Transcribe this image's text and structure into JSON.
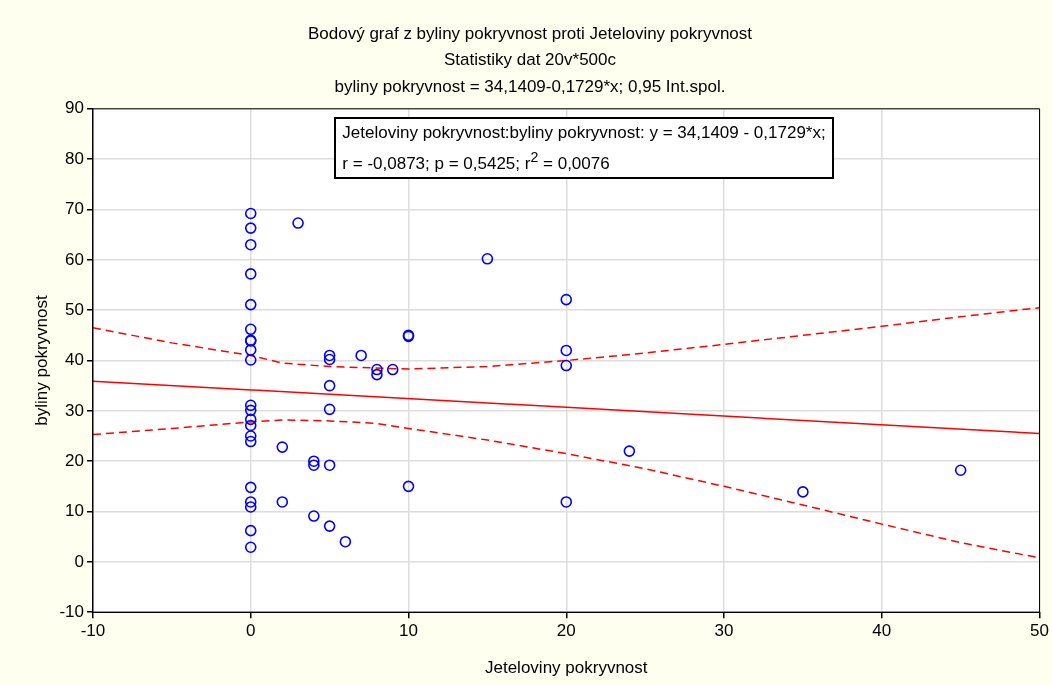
{
  "chart_data": {
    "type": "scatter",
    "title": "Bodový graf z byliny pokryvnost proti Jeteloviny pokryvnost",
    "subtitle": "Statistiky dat 20v*500c",
    "xlabel": "Jeteloviny pokryvnost",
    "ylabel": "byliny pokryvnost",
    "annotations": [
      "byliny pokryvnost = 34,1409-0,1729*x; 0,95 Int.spol.",
      "Jeteloviny pokryvnost:byliny pokryvnost:   y = 34,1409 - 0,1729*x;",
      "r = -0,0873; p = 0,5425; r$^{2}$ = 0,0076"
    ],
    "series": [
      {
        "type": "scatter",
        "color": "#0000ff",
        "marker": "circle",
        "x": [
          0,
          0,
          0,
          0,
          0,
          0,
          0,
          0,
          0,
          0,
          0,
          0,
          0,
          0,
          0,
          0,
          0,
          0,
          0,
          0,
          0,
          2,
          2,
          3,
          4,
          4,
          4,
          5,
          5,
          5,
          5,
          5,
          5,
          6,
          7,
          8,
          8,
          9,
          10,
          10,
          10,
          15,
          20,
          20,
          20,
          20,
          24,
          35,
          45
        ],
        "values": [
          69.2,
          66.3,
          63,
          57.2,
          51.1,
          46.2,
          44,
          43.9,
          42.1,
          40.1,
          31.1,
          30.1,
          28.3,
          27.1,
          25,
          23.9,
          14.8,
          11.9,
          10.9,
          6.2,
          2.9,
          22.8,
          11.9,
          67.3,
          20,
          19.2,
          9.1,
          41,
          40.2,
          35,
          30.3,
          19.2,
          7.1,
          4,
          41,
          38.2,
          37.2,
          38.2,
          45,
          44.8,
          15,
          60.2,
          52.1,
          42,
          39,
          11.9,
          22,
          13.9,
          18.2
        ]
      },
      {
        "type": "line",
        "color": "#ff0000",
        "line_style": "solid",
        "x": [
          -10,
          50
        ],
        "values": [
          35.9,
          25.5
        ]
      },
      {
        "type": "line",
        "color": "#ff0000",
        "line_style": "dashed",
        "x": [
          -10,
          -5,
          0,
          2,
          5,
          10,
          15,
          20,
          25,
          30,
          35,
          40,
          45,
          50
        ],
        "values": [
          46.5,
          43.5,
          41,
          39.5,
          38.8,
          38.3,
          38.8,
          40,
          41.5,
          43.2,
          45,
          46.8,
          48.7,
          50.5
        ]
      },
      {
        "type": "line",
        "color": "#ff0000",
        "line_style": "dashed",
        "x": [
          -10,
          -5,
          0,
          2,
          5,
          8,
          10,
          15,
          20,
          25,
          30,
          35,
          40,
          45,
          50
        ],
        "values": [
          25.3,
          26.5,
          27.8,
          28.2,
          28,
          27.5,
          26.5,
          24.2,
          21.5,
          18.5,
          15,
          11.3,
          7.5,
          3.8,
          0.8
        ]
      }
    ],
    "xlim": [
      -10,
      50
    ],
    "xticks": [
      -10,
      0,
      10,
      20,
      30,
      40,
      50
    ],
    "ylim": [
      -10,
      90
    ],
    "yticks": [
      -10,
      0,
      10,
      20,
      30,
      40,
      50,
      60,
      70,
      80,
      90
    ],
    "grid": true,
    "legend": false
  }
}
